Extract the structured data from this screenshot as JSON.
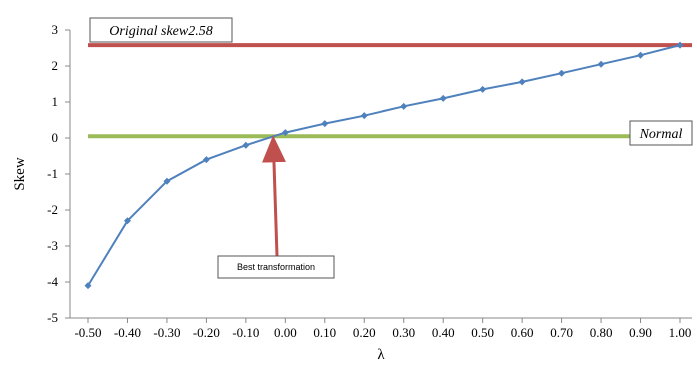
{
  "chart_data": {
    "type": "line",
    "xlabel": "λ",
    "ylabel": "Skew",
    "x": [
      -0.5,
      -0.4,
      -0.3,
      -0.2,
      -0.1,
      0.0,
      0.1,
      0.2,
      0.3,
      0.4,
      0.5,
      0.6,
      0.7,
      0.8,
      0.9,
      1.0
    ],
    "x_tick_labels": [
      "-0.50",
      "-0.40",
      "-0.30",
      "-0.20",
      "-0.10",
      "0.00",
      "0.10",
      "0.20",
      "0.30",
      "0.40",
      "0.50",
      "0.60",
      "0.70",
      "0.80",
      "0.90",
      "1.00"
    ],
    "y_ticks": [
      3,
      2,
      1,
      0,
      -1,
      -2,
      -3,
      -4,
      -5
    ],
    "ylim": [
      -5,
      3
    ],
    "series": [
      {
        "values": [
          -4.1,
          -2.3,
          -1.2,
          -0.6,
          -0.2,
          0.15,
          0.4,
          0.62,
          0.88,
          1.1,
          1.35,
          1.56,
          1.8,
          2.05,
          2.3,
          2.58
        ],
        "color": "#4F81BD"
      }
    ],
    "reference_lines": [
      {
        "y": 2.58,
        "color": "#C0504D",
        "label": "Original skew2.58",
        "label_position": "top-left"
      },
      {
        "y": 0.05,
        "color": "#9BBB59",
        "label": "Normal",
        "label_position": "right"
      }
    ],
    "annotations": [
      {
        "text": "Best transformation",
        "target_x": -0.03,
        "target_y": 0.02,
        "arrow_color": "#C0504D"
      }
    ],
    "grid": false
  }
}
